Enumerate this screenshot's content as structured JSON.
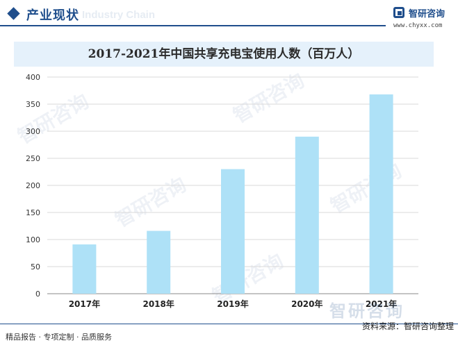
{
  "header": {
    "section_title": "产业现状",
    "section_bg_text": "Industry Chain",
    "logo_name": "智研咨询",
    "logo_url": "www.chyxx.com"
  },
  "colors": {
    "brand": "#1f4e8c",
    "bar": "#aee1f7",
    "title_band": "#e5f1fb"
  },
  "icons": [
    "diamond-icon",
    "zhiyan-logo-icon"
  ],
  "chart_data": {
    "type": "bar",
    "title": "2017-2021年中国共享充电宝使用人数（百万人）",
    "categories": [
      "2017年",
      "2018年",
      "2019年",
      "2020年",
      "2021年"
    ],
    "values": [
      91,
      116,
      230,
      290,
      368
    ],
    "ylim": [
      0,
      400
    ],
    "yticks": [
      0,
      50,
      100,
      150,
      200,
      250,
      300,
      350,
      400
    ],
    "xlabel": "",
    "ylabel": "",
    "grid": true
  },
  "footer": {
    "left_text": "精品报告 · 专项定制 · 品质服务",
    "source": "资料来源：智研咨询整理",
    "watermark": "智研咨询"
  }
}
